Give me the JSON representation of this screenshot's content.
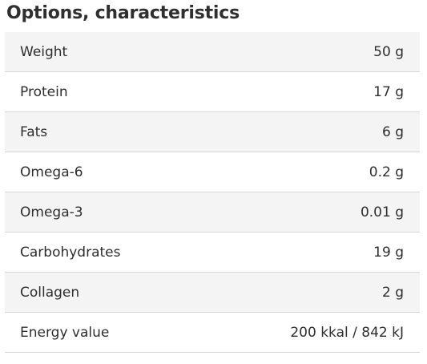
{
  "section": {
    "title": "Options, characteristics"
  },
  "rows": [
    {
      "label": "Weight",
      "value": "50 g"
    },
    {
      "label": "Protein",
      "value": "17 g"
    },
    {
      "label": "Fats",
      "value": "6 g"
    },
    {
      "label": "Omega-6",
      "value": "0.2 g"
    },
    {
      "label": "Omega-3",
      "value": "0.01 g"
    },
    {
      "label": "Carbohydrates",
      "value": "19 g"
    },
    {
      "label": "Collagen",
      "value": "2 g"
    },
    {
      "label": "Energy value",
      "value": "200 kkal / 842 kJ"
    }
  ]
}
